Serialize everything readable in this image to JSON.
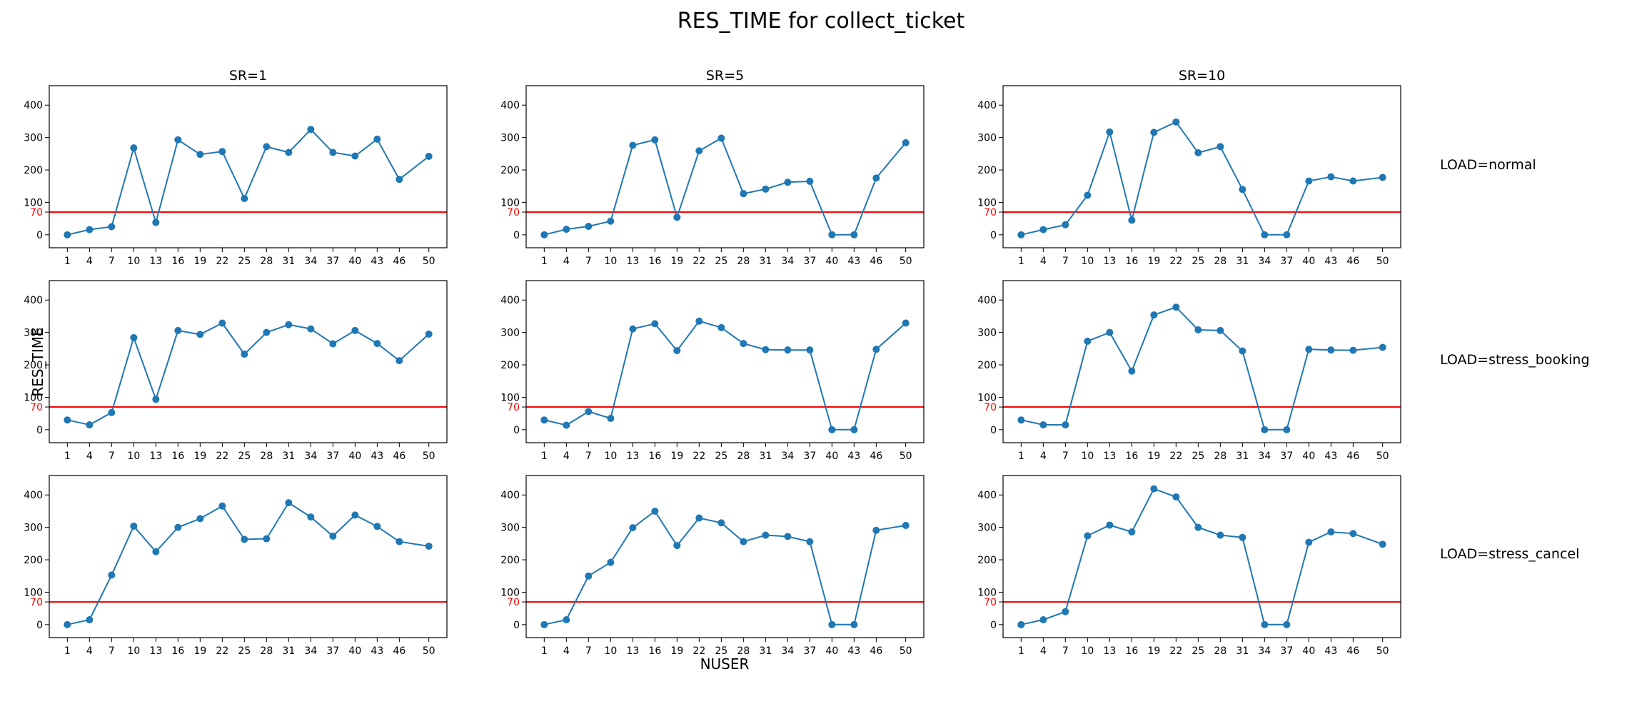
{
  "title": "RES_TIME for collect_ticket",
  "ylabel": "RES_TIME",
  "xlabel": "NUSER",
  "col_titles": [
    "SR=1",
    "SR=5",
    "SR=10"
  ],
  "row_titles": [
    "LOAD=normal",
    "LOAD=stress_booking",
    "LOAD=stress_cancel"
  ],
  "colors": {
    "series": "#1f77b4",
    "threshold": "#ff0000"
  },
  "chart_data": {
    "type": "line",
    "x": [
      1,
      4,
      7,
      10,
      13,
      16,
      19,
      22,
      25,
      28,
      31,
      34,
      37,
      40,
      43,
      46,
      50
    ],
    "ylim": [
      -40,
      460
    ],
    "yticks": [
      0,
      100,
      200,
      300,
      400
    ],
    "threshold": {
      "value": 70,
      "label": "70"
    },
    "grid": false,
    "panels": [
      {
        "row": "LOAD=normal",
        "col": "SR=1",
        "values": [
          0,
          16,
          25,
          268,
          38,
          293,
          248,
          257,
          112,
          272,
          254,
          325,
          254,
          243,
          295,
          171,
          242
        ]
      },
      {
        "row": "LOAD=normal",
        "col": "SR=5",
        "values": [
          0,
          17,
          26,
          42,
          276,
          293,
          54,
          259,
          298,
          127,
          141,
          162,
          165,
          0,
          0,
          175,
          284
        ]
      },
      {
        "row": "LOAD=normal",
        "col": "SR=10",
        "values": [
          0,
          16,
          31,
          122,
          317,
          45,
          316,
          348,
          253,
          272,
          140,
          0,
          0,
          166,
          179,
          166,
          177
        ]
      },
      {
        "row": "LOAD=stress_booking",
        "col": "SR=1",
        "values": [
          30,
          15,
          53,
          284,
          94,
          306,
          294,
          329,
          233,
          300,
          324,
          311,
          265,
          306,
          266,
          213,
          295
        ]
      },
      {
        "row": "LOAD=stress_booking",
        "col": "SR=5",
        "values": [
          30,
          14,
          56,
          35,
          311,
          327,
          244,
          335,
          315,
          266,
          247,
          246,
          246,
          0,
          0,
          248,
          329
        ]
      },
      {
        "row": "LOAD=stress_booking",
        "col": "SR=10",
        "values": [
          30,
          15,
          15,
          273,
          300,
          181,
          354,
          378,
          308,
          306,
          243,
          0,
          0,
          248,
          246,
          245,
          254
        ]
      },
      {
        "row": "LOAD=stress_cancel",
        "col": "SR=1",
        "values": [
          0,
          15,
          153,
          304,
          225,
          300,
          327,
          366,
          263,
          265,
          376,
          332,
          273,
          338,
          303,
          256,
          242
        ]
      },
      {
        "row": "LOAD=stress_cancel",
        "col": "SR=5",
        "values": [
          0,
          15,
          150,
          192,
          299,
          350,
          244,
          329,
          314,
          256,
          276,
          272,
          256,
          0,
          0,
          291,
          306
        ]
      },
      {
        "row": "LOAD=stress_cancel",
        "col": "SR=10",
        "values": [
          0,
          15,
          40,
          274,
          307,
          286,
          419,
          394,
          300,
          276,
          269,
          0,
          0,
          254,
          286,
          281,
          248
        ]
      }
    ]
  }
}
